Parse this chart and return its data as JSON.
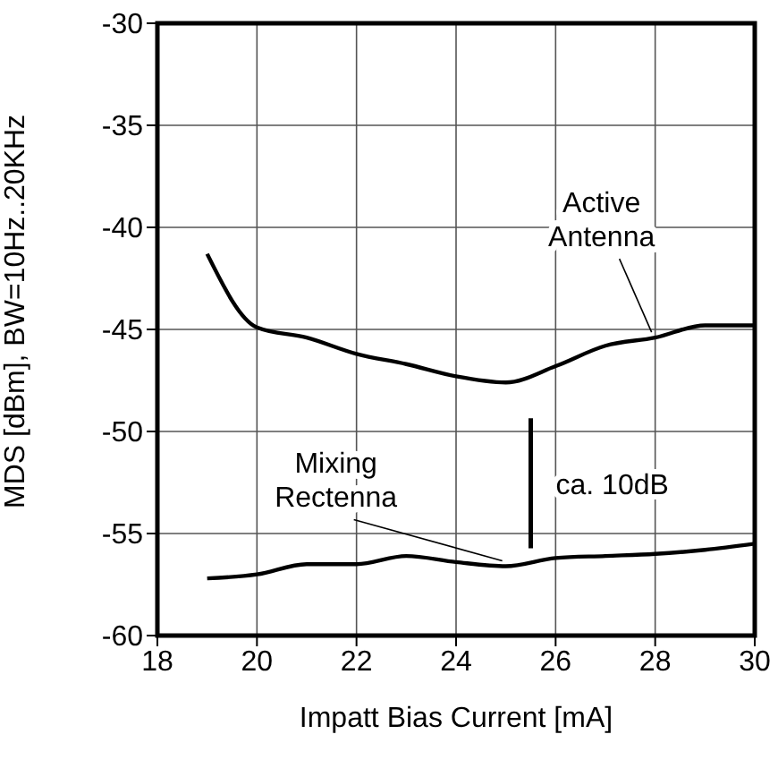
{
  "chart_data": {
    "type": "line",
    "xlabel": "Impatt Bias Current [mA]",
    "ylabel": "MDS [dBm], BW=10Hz..20KHz",
    "x": [
      19,
      20,
      21,
      22,
      23,
      24,
      25,
      26,
      27,
      28,
      29,
      30
    ],
    "series": [
      {
        "name": "Active\nAntenna",
        "color": "#000000",
        "values": [
          -41.3,
          -44.9,
          -45.4,
          -46.2,
          -46.7,
          -47.3,
          -47.6,
          -46.8,
          -45.8,
          -45.4,
          -44.8,
          -44.8
        ]
      },
      {
        "name": "Mixing\nRectenna",
        "color": "#000000",
        "values": [
          -57.2,
          -57.0,
          -56.5,
          -56.5,
          -56.1,
          -56.4,
          -56.6,
          -56.2,
          -56.1,
          -56.0,
          -55.8,
          -55.5
        ]
      }
    ],
    "annotations": [
      "ca. 10dB"
    ],
    "xlim": [
      18,
      30
    ],
    "xticks": [
      18,
      20,
      22,
      24,
      26,
      28,
      30
    ],
    "ylim": [
      -60,
      -30
    ],
    "yticks": [
      -60,
      -55,
      -50,
      -45,
      -40,
      -35,
      -30
    ],
    "grid": true,
    "legend": false,
    "marker": "none",
    "line_style": "solid"
  }
}
